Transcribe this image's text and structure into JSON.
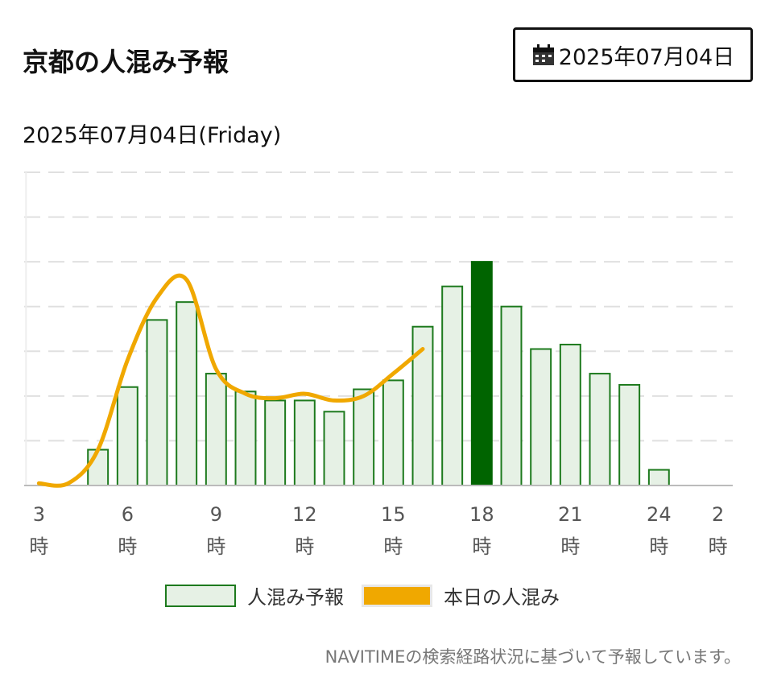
{
  "header": {
    "title": "京都の人混み予報",
    "date_button": "2025年07月04日",
    "date_button_icon": "calendar-icon"
  },
  "subtitle": "2025年07月04日(Friday)",
  "colors": {
    "bar_fill": "#e6f1e5",
    "bar_stroke": "#1d7a1d",
    "bar_highlight": "#006400",
    "line": "#f0a800",
    "grid": "#e0e0e0"
  },
  "chart_data": {
    "type": "bar",
    "x_ticks": [
      {
        "hour": 3,
        "num": "3",
        "unit": "時"
      },
      {
        "hour": 6,
        "num": "6",
        "unit": "時"
      },
      {
        "hour": 9,
        "num": "9",
        "unit": "時"
      },
      {
        "hour": 12,
        "num": "12",
        "unit": "時"
      },
      {
        "hour": 15,
        "num": "15",
        "unit": "時"
      },
      {
        "hour": 18,
        "num": "18",
        "unit": "時"
      },
      {
        "hour": 21,
        "num": "21",
        "unit": "時"
      },
      {
        "hour": 24,
        "num": "24",
        "unit": "時"
      },
      {
        "hour": 26,
        "num": "2",
        "unit": "時"
      }
    ],
    "x_range": [
      2.5,
      26.5
    ],
    "y_range": [
      0,
      7
    ],
    "grid": true,
    "highlight_hour": 18,
    "series": [
      {
        "name": "人混み予報",
        "kind": "bar",
        "hours": [
          5,
          6,
          7,
          8,
          9,
          10,
          11,
          12,
          13,
          14,
          15,
          16,
          17,
          18,
          19,
          20,
          21,
          22,
          23,
          24
        ],
        "values": [
          0.8,
          2.2,
          3.7,
          4.1,
          2.5,
          2.1,
          1.9,
          1.9,
          1.65,
          2.15,
          2.35,
          3.55,
          4.45,
          5.0,
          4.0,
          3.05,
          3.15,
          2.5,
          2.25,
          0.35
        ]
      },
      {
        "name": "本日の人混み",
        "kind": "line",
        "hours": [
          3,
          4,
          5,
          6,
          7,
          8,
          9,
          10,
          11,
          12,
          13,
          14,
          15,
          16
        ],
        "values": [
          0.05,
          0.05,
          0.8,
          2.8,
          4.2,
          4.6,
          2.6,
          2.05,
          1.95,
          2.05,
          1.9,
          2.0,
          2.5,
          3.05
        ]
      }
    ],
    "legend_position": "bottom-center"
  },
  "legend": {
    "forecast_label": "人混み予報",
    "today_label": "本日の人混み"
  },
  "footnote": "NAVITIMEの検索経路状況に基づいて予報しています。"
}
